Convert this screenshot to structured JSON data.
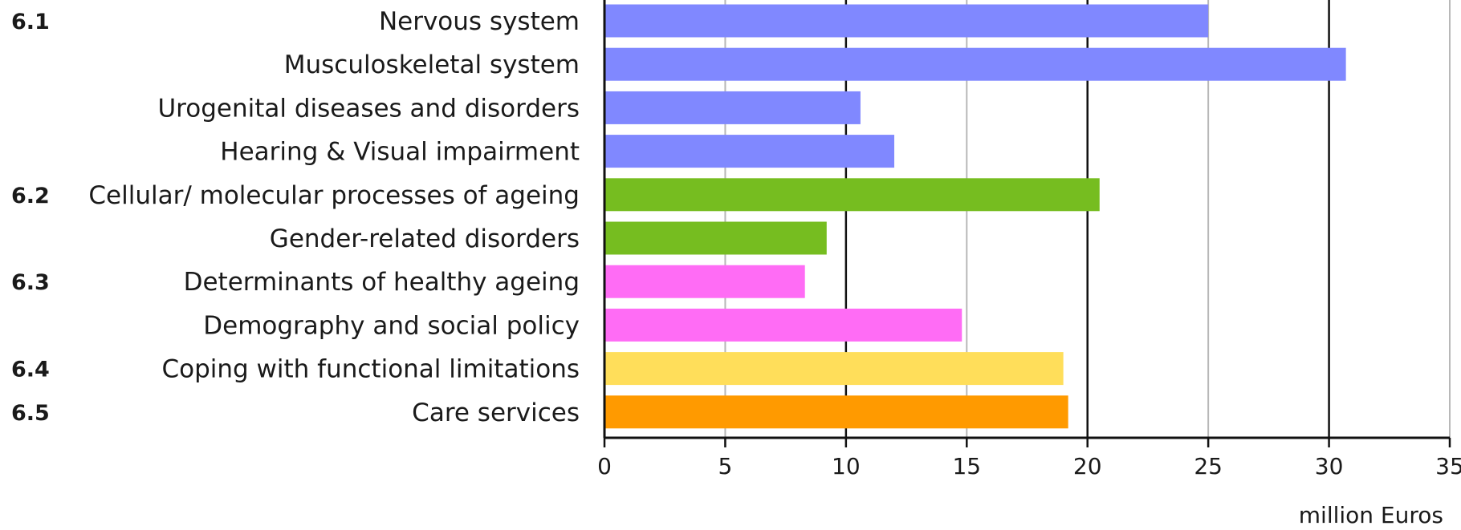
{
  "chart_data": {
    "type": "bar",
    "orientation": "horizontal",
    "xlabel": "million Euros",
    "xlim": [
      0,
      35
    ],
    "xticks": [
      "0",
      "5",
      "10",
      "15",
      "20",
      "25",
      "30",
      "35"
    ],
    "grid": true,
    "legend": "none",
    "sections": [
      {
        "code": "6.1",
        "color": "#8088ff"
      },
      {
        "code": "6.2",
        "color": "#76bd20"
      },
      {
        "code": "6.3",
        "color": "#ff6cf5"
      },
      {
        "code": "6.4",
        "color": "#ffde5a"
      },
      {
        "code": "6.5",
        "color": "#ff9a00"
      }
    ],
    "bars": [
      {
        "category": "Nervous system",
        "value": 25.0,
        "section_index": 0,
        "show_code": true
      },
      {
        "category": "Musculoskeletal system",
        "value": 30.7,
        "section_index": 0,
        "show_code": false
      },
      {
        "category": "Urogenital diseases and disorders",
        "value": 10.6,
        "section_index": 0,
        "show_code": false
      },
      {
        "category": "Hearing & Visual impairment",
        "value": 12.0,
        "section_index": 0,
        "show_code": false
      },
      {
        "category": "Cellular/ molecular processes of ageing",
        "value": 20.5,
        "section_index": 1,
        "show_code": true
      },
      {
        "category": "Gender-related disorders",
        "value": 9.2,
        "section_index": 1,
        "show_code": false
      },
      {
        "category": "Determinants of healthy ageing",
        "value": 8.3,
        "section_index": 2,
        "show_code": true
      },
      {
        "category": "Demography and social policy",
        "value": 14.8,
        "section_index": 2,
        "show_code": false
      },
      {
        "category": "Coping with functional limitations",
        "value": 19.0,
        "section_index": 3,
        "show_code": true
      },
      {
        "category": "Care services",
        "value": 19.2,
        "section_index": 4,
        "show_code": true
      }
    ]
  }
}
